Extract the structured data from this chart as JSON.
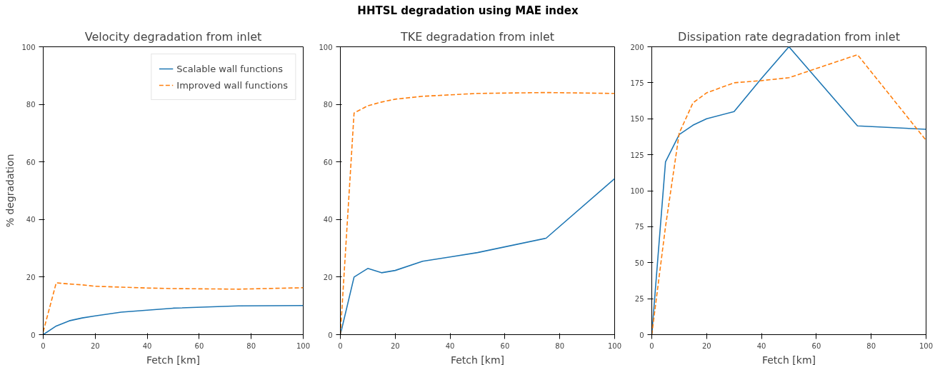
{
  "chart_data": [
    {
      "type": "line",
      "title": "Velocity degradation from inlet",
      "annotations": [
        "HHTSL degradation using MAE index"
      ],
      "xlabel": "Fetch [km]",
      "ylabel": "% degradation",
      "x": [
        0,
        5,
        10,
        15,
        20,
        30,
        40,
        50,
        75,
        100
      ],
      "xlim": [
        0,
        100
      ],
      "xticks": [
        0,
        20,
        40,
        60,
        80,
        100
      ],
      "ylim": [
        0,
        100
      ],
      "yticks": [
        0,
        20,
        40,
        60,
        80,
        100
      ],
      "grid": false,
      "legend": "top right",
      "series": [
        {
          "name": "Scalable wall functions",
          "color": "#1f77b4",
          "line_style": "solid",
          "values": [
            0,
            3,
            4.8,
            5.8,
            6.5,
            7.8,
            8.5,
            9.2,
            10,
            10.1
          ]
        },
        {
          "name": "Improved wall functions",
          "color": "#ff7f0e",
          "line_style": "dashed",
          "values": [
            1,
            18,
            17.6,
            17.3,
            16.8,
            16.5,
            16.2,
            16,
            15.8,
            16.3
          ]
        }
      ]
    },
    {
      "type": "line",
      "title": "TKE degradation from inlet",
      "xlabel": "Fetch [km]",
      "x": [
        0,
        5,
        10,
        15,
        20,
        30,
        40,
        50,
        75,
        100
      ],
      "xlim": [
        0,
        100
      ],
      "xticks": [
        0,
        20,
        40,
        60,
        80,
        100
      ],
      "ylim": [
        0,
        100
      ],
      "yticks": [
        0,
        20,
        40,
        60,
        80,
        100
      ],
      "grid": false,
      "series": [
        {
          "color": "#1f77b4",
          "line_style": "solid",
          "values": [
            0,
            20,
            23,
            21.5,
            22.3,
            25.5,
            27,
            28.5,
            33.5,
            54.2
          ]
        },
        {
          "color": "#ff7f0e",
          "line_style": "dashed",
          "values": [
            0,
            77,
            79.5,
            80.8,
            81.8,
            82.8,
            83.3,
            83.8,
            84.1,
            83.8
          ]
        }
      ]
    },
    {
      "type": "line",
      "title": "Dissipation rate degradation from inlet",
      "xlabel": "Fetch [km]",
      "x": [
        0,
        5,
        10,
        15,
        20,
        30,
        40,
        50,
        75,
        100
      ],
      "xlim": [
        0,
        100
      ],
      "xticks": [
        0,
        20,
        40,
        60,
        80,
        100
      ],
      "ylim": [
        0,
        200
      ],
      "yticks": [
        0,
        25,
        50,
        75,
        100,
        125,
        150,
        175,
        200
      ],
      "grid": false,
      "series": [
        {
          "color": "#1f77b4",
          "line_style": "solid",
          "values": [
            0,
            120,
            139,
            145.5,
            150,
            155,
            178,
            200,
            145,
            142.7
          ]
        },
        {
          "color": "#ff7f0e",
          "line_style": "dashed",
          "values": [
            0,
            75,
            140,
            161,
            168,
            175,
            176.5,
            178.5,
            194.5,
            135
          ]
        }
      ]
    }
  ]
}
